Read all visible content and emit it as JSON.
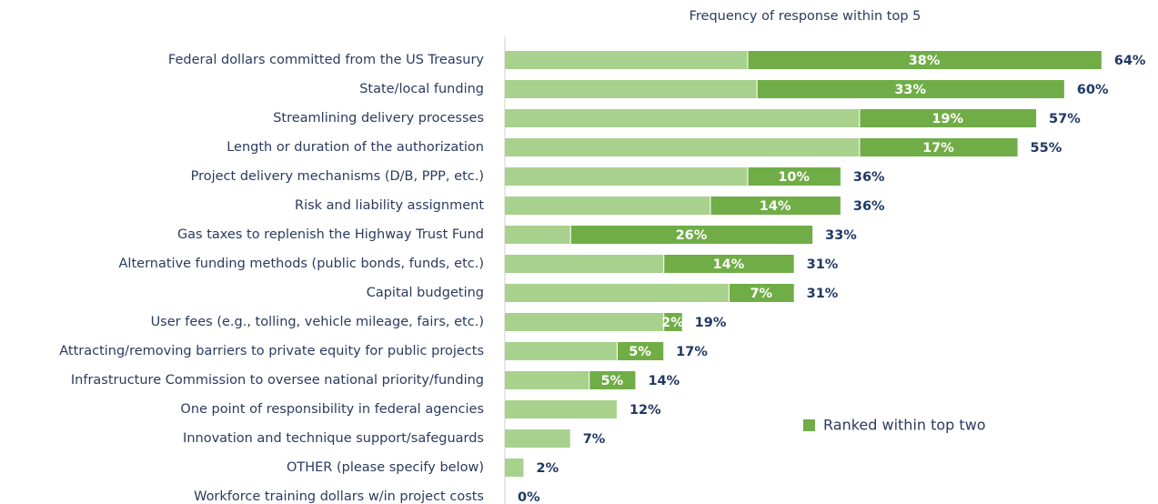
{
  "chart_data": {
    "type": "bar",
    "orientation": "horizontal",
    "title": "Frequency of response within top 5",
    "categories": [
      "Federal dollars committed from the US Treasury",
      "State/local funding",
      "Streamlining delivery processes",
      "Length or duration of the authorization",
      "Project delivery mechanisms (D/B, PPP, etc.)",
      "Risk and liability assignment",
      "Gas taxes to replenish the Highway Trust Fund",
      "Alternative funding methods (public bonds, funds, etc.)",
      "Capital budgeting",
      "User fees (e.g., tolling, vehicle mileage, fairs, etc.)",
      "Attracting/removing barriers to private equity for public projects",
      "Infrastructure Commission to oversee national priority/funding",
      "One point of responsibility in federal agencies",
      "Innovation and technique support/safeguards",
      "OTHER (please specify below)",
      "Workforce training dollars w/in project costs"
    ],
    "values": [
      64,
      60,
      57,
      55,
      36,
      36,
      33,
      31,
      31,
      19,
      17,
      14,
      12,
      7,
      2,
      0
    ],
    "value_labels": [
      "64%",
      "60%",
      "57%",
      "55%",
      "36%",
      "36%",
      "33%",
      "31%",
      "31%",
      "19%",
      "17%",
      "14%",
      "12%",
      "7%",
      "2%",
      "0%"
    ],
    "color": "#a9d18e",
    "series": [
      {
        "name": "Ranked within top two",
        "color": "#70ad47",
        "values": [
          38,
          33,
          19,
          17,
          10,
          14,
          26,
          14,
          7,
          2,
          5,
          5,
          null,
          null,
          null,
          null
        ],
        "value_labels": [
          "38%",
          "33%",
          "19%",
          "17%",
          "10%",
          "14%",
          "26%",
          "14%",
          "7%",
          "2%",
          "5%",
          "5%",
          null,
          null,
          null,
          null
        ]
      }
    ],
    "xlim": [
      0,
      65
    ],
    "legend": "lower right"
  }
}
